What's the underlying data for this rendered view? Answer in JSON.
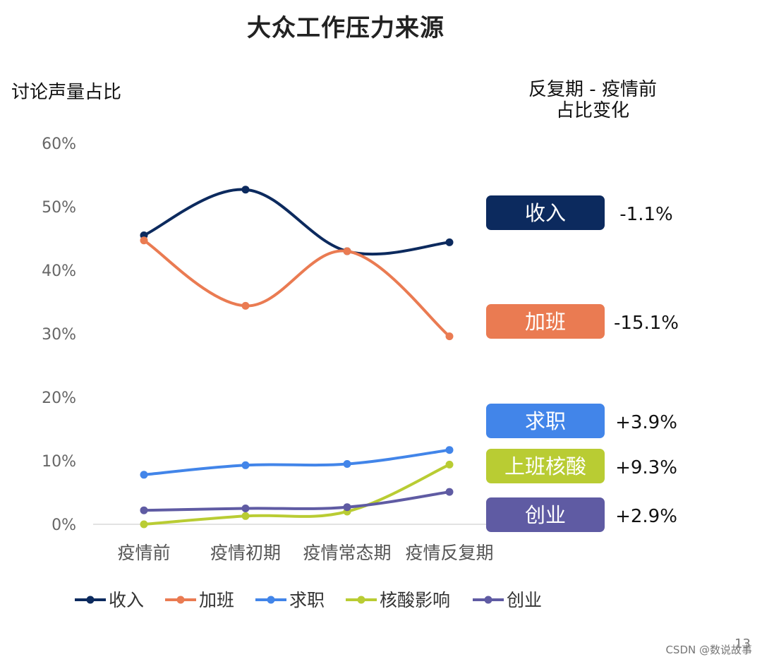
{
  "title": "大众工作压力来源",
  "y_caption": "讨论声量占比",
  "change_caption_line1": "反复期 - 疫情前",
  "change_caption_line2": "占比变化",
  "page_number": "13",
  "watermark": "CSDN @数说故事",
  "chart_data": {
    "type": "line",
    "categories": [
      "疫情前",
      "疫情初期",
      "疫情常态期",
      "疫情反复期"
    ],
    "ylim": [
      0,
      60
    ],
    "yticks": [
      0,
      10,
      20,
      30,
      40,
      50,
      60
    ],
    "ytick_labels": [
      "0%",
      "10%",
      "20%",
      "30%",
      "40%",
      "50%",
      "60%"
    ],
    "grid": false,
    "legend_position": "bottom",
    "series": [
      {
        "name": "收入",
        "badge": "收入",
        "values": [
          45.5,
          52.7,
          43.0,
          44.4
        ],
        "color": "#0c2a5e",
        "change": "-1.1%"
      },
      {
        "name": "加班",
        "badge": "加班",
        "values": [
          44.7,
          34.4,
          43.0,
          29.6
        ],
        "color": "#ea7b52",
        "change": "-15.1%"
      },
      {
        "name": "求职",
        "badge": "求职",
        "values": [
          7.8,
          9.3,
          9.5,
          11.7
        ],
        "color": "#4285e9",
        "change": "+3.9%"
      },
      {
        "name": "核酸影响",
        "badge": "上班核酸",
        "values": [
          0.0,
          1.3,
          2.0,
          9.4
        ],
        "color": "#b9cc33",
        "change": "+9.3%"
      },
      {
        "name": "创业",
        "badge": "创业",
        "values": [
          2.2,
          2.5,
          2.7,
          5.1
        ],
        "color": "#5f5ba3",
        "change": "+2.9%"
      }
    ]
  }
}
